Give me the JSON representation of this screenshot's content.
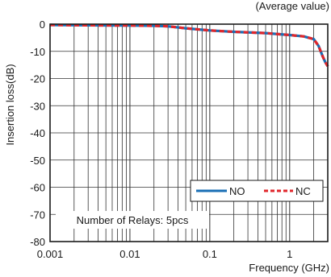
{
  "chart_data": {
    "type": "line",
    "subtitle": "(Average value)",
    "xlabel": "Frequency (GHz)",
    "ylabel": "Insertion loss(dB)",
    "x_scale": "log",
    "xlim": [
      0.001,
      3
    ],
    "ylim": [
      -80,
      0
    ],
    "x_ticks": [
      0.001,
      0.01,
      0.1,
      1
    ],
    "x_tick_labels": [
      "0.001",
      "0.01",
      "0.1",
      "1"
    ],
    "y_ticks": [
      0,
      -10,
      -20,
      -30,
      -40,
      -50,
      -60,
      -70,
      -80
    ],
    "y_tick_labels": [
      "0",
      "-10",
      "-20",
      "-30",
      "-40",
      "-50",
      "-60",
      "-70",
      "-80"
    ],
    "grid": true,
    "legend_position": "bottom-right",
    "annotation": "Number of Relays: 5pcs",
    "series": [
      {
        "name": "NO",
        "color": "#1a6fb5",
        "style": "solid",
        "x": [
          0.001,
          0.003,
          0.01,
          0.02,
          0.03,
          0.05,
          0.1,
          0.2,
          0.5,
          1,
          1.5,
          2,
          2.3,
          2.6,
          2.8,
          3
        ],
        "y": [
          -0.3,
          -0.4,
          -0.5,
          -0.6,
          -0.8,
          -1.5,
          -2.3,
          -2.8,
          -3.3,
          -4,
          -4.5,
          -5.5,
          -8,
          -12,
          -14,
          -15.5
        ]
      },
      {
        "name": "NC",
        "color": "#e0262b",
        "style": "dashed",
        "x": [
          0.001,
          0.003,
          0.01,
          0.02,
          0.03,
          0.05,
          0.1,
          0.2,
          0.5,
          1,
          1.5,
          2,
          2.3,
          2.6,
          2.8,
          3
        ],
        "y": [
          -0.3,
          -0.4,
          -0.5,
          -0.6,
          -0.8,
          -1.5,
          -2.3,
          -2.8,
          -3.3,
          -4,
          -4.5,
          -5.5,
          -8,
          -12,
          -14,
          -15.5
        ]
      }
    ]
  }
}
